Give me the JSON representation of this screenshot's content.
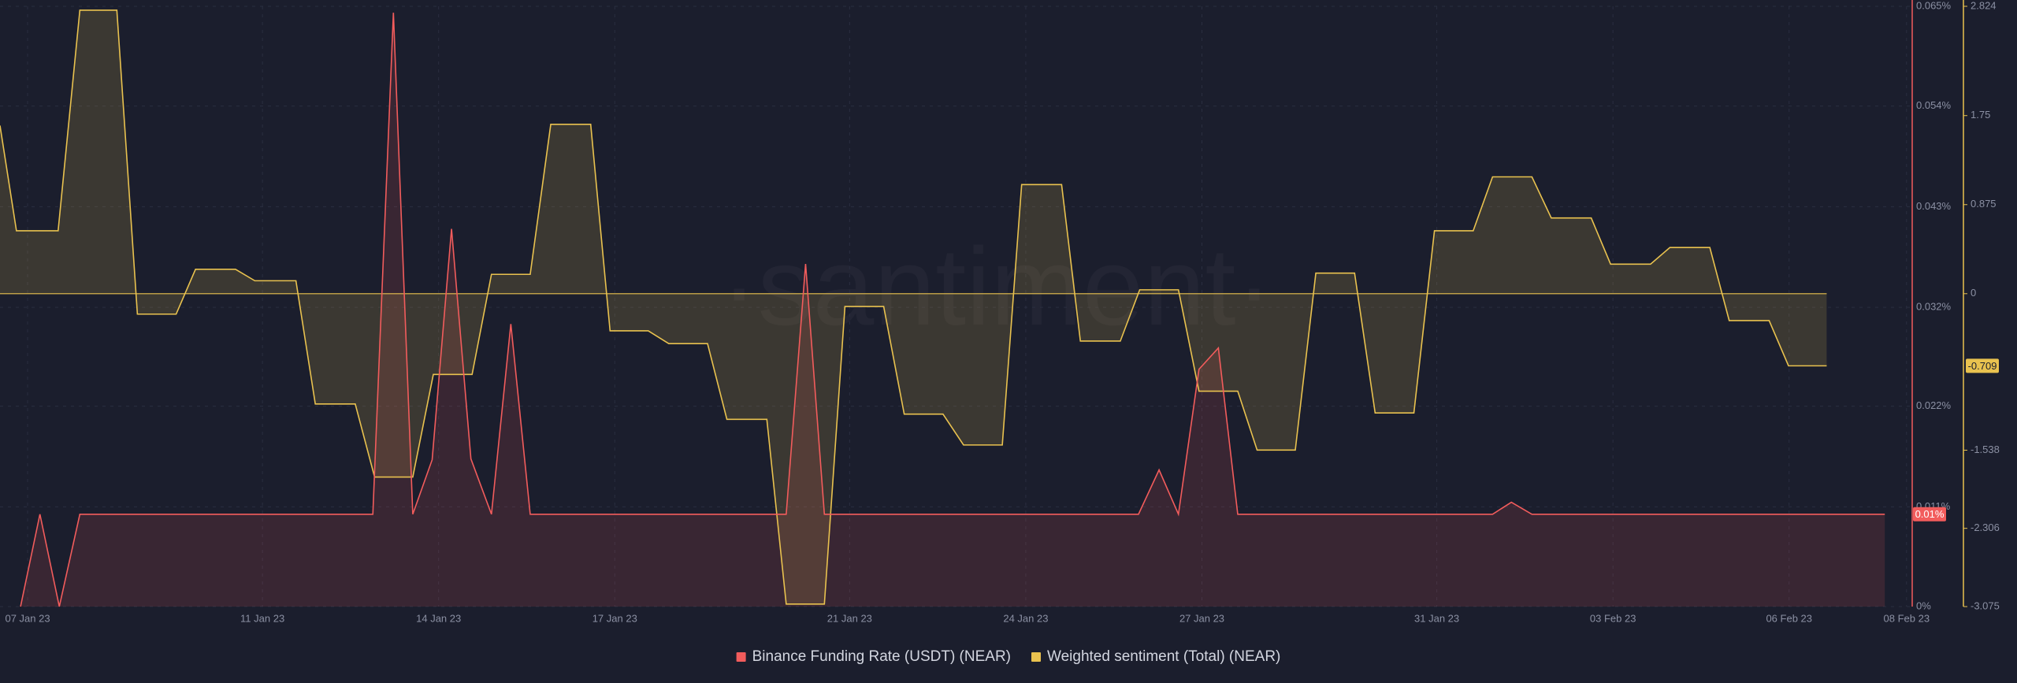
{
  "chart_data": {
    "type": "line",
    "watermark": "·santiment·",
    "xlim": [
      -0.47,
      32.07
    ],
    "xticks": [
      {
        "value": 0,
        "label": "07 Jan 23"
      },
      {
        "value": 4,
        "label": "11 Jan 23"
      },
      {
        "value": 7,
        "label": "14 Jan 23"
      },
      {
        "value": 10,
        "label": "17 Jan 23"
      },
      {
        "value": 14,
        "label": "21 Jan 23"
      },
      {
        "value": 17,
        "label": "24 Jan 23"
      },
      {
        "value": 20,
        "label": "27 Jan 23"
      },
      {
        "value": 24,
        "label": "31 Jan 23"
      },
      {
        "value": 27,
        "label": "03 Feb 23"
      },
      {
        "value": 30,
        "label": "06 Feb 23"
      },
      {
        "value": 32,
        "label": "08 Feb 23"
      }
    ],
    "ylim": [
      0,
      0.065
    ],
    "yticks": [
      {
        "value": 0,
        "label": "0%"
      },
      {
        "value": 0.0108,
        "label": "0.011%"
      },
      {
        "value": 0.0217,
        "label": "0.022%"
      },
      {
        "value": 0.0324,
        "label": "0.032%"
      },
      {
        "value": 0.0433,
        "label": "0.043%"
      },
      {
        "value": 0.0542,
        "label": "0.054%"
      },
      {
        "value": 0.065,
        "label": "0.065%"
      }
    ],
    "y2lim": [
      -3.075,
      2.824
    ],
    "y2ticks": [
      2.824,
      1.75,
      0.875,
      0,
      -1.538,
      -2.306,
      -3.075
    ],
    "grid": true,
    "series": [
      {
        "name": "Binance Funding Rate (USDT) (NEAR)",
        "color": "#f25c5c",
        "axis": "y",
        "last_value_label": "0.01%",
        "x": [
          -0.12,
          0.21,
          0.54,
          0.89,
          5.88,
          6.23,
          6.56,
          6.89,
          7.22,
          7.55,
          7.9,
          8.23,
          8.56,
          12.92,
          13.25,
          13.57,
          18.92,
          19.27,
          19.6,
          19.95,
          20.28,
          20.61,
          24.95,
          25.27,
          25.62,
          31.63
        ],
        "values": [
          0,
          0.01,
          0,
          0.01,
          0.01,
          0.0643,
          0.01,
          0.0159,
          0.0409,
          0.016,
          0.01,
          0.0306,
          0.01,
          0.01,
          0.0371,
          0.01,
          0.01,
          0.0148,
          0.01,
          0.0257,
          0.028,
          0.01,
          0.01,
          0.0113,
          0.01,
          0.01
        ]
      },
      {
        "name": "Weighted sentiment (Total) (NEAR)",
        "color": "#e9c24f",
        "axis": "y2",
        "last_value_label": "-0.709",
        "x": [
          -0.47,
          -0.19,
          0.52,
          0.89,
          1.52,
          1.87,
          2.53,
          2.86,
          3.54,
          3.87,
          4.57,
          4.9,
          5.58,
          5.91,
          6.56,
          6.91,
          7.57,
          7.9,
          8.56,
          8.91,
          9.59,
          9.92,
          10.57,
          10.92,
          11.58,
          11.91,
          12.59,
          12.92,
          13.57,
          13.92,
          14.58,
          14.93,
          15.59,
          15.94,
          16.6,
          16.93,
          17.61,
          17.93,
          18.61,
          18.94,
          19.6,
          19.95,
          20.61,
          20.94,
          21.59,
          21.94,
          22.6,
          22.95,
          23.61,
          23.96,
          24.62,
          24.95,
          25.62,
          25.95,
          26.63,
          26.96,
          27.64,
          27.97,
          28.65,
          28.98,
          29.66,
          29.99,
          30.64
        ],
        "values": [
          1.652,
          0.618,
          0.618,
          2.786,
          2.786,
          -0.201,
          -0.201,
          0.24,
          0.24,
          0.127,
          0.127,
          -1.084,
          -1.084,
          -1.802,
          -1.802,
          -0.794,
          -0.794,
          0.19,
          0.19,
          1.664,
          1.664,
          -0.365,
          -0.365,
          -0.491,
          -0.491,
          -1.235,
          -1.235,
          -3.05,
          -3.05,
          -0.126,
          -0.126,
          -1.184,
          -1.184,
          -1.487,
          -1.487,
          1.072,
          1.072,
          -0.466,
          -0.466,
          0.038,
          0.038,
          -0.958,
          -0.958,
          -1.537,
          -1.537,
          0.202,
          0.202,
          -1.172,
          -1.172,
          0.618,
          0.618,
          1.148,
          1.148,
          0.744,
          0.744,
          0.29,
          0.29,
          0.454,
          0.454,
          -0.264,
          -0.264,
          -0.709,
          -0.709
        ]
      }
    ]
  }
}
